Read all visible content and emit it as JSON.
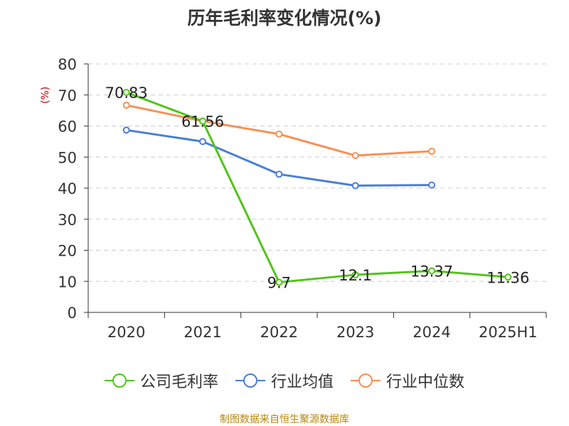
{
  "chart_data": {
    "type": "line",
    "title": "历年毛利率变化情况(%)",
    "ylabel": "(%)",
    "xlabel": "",
    "ylim": [
      0,
      80
    ],
    "yticks": [
      0,
      10,
      20,
      30,
      40,
      50,
      60,
      70,
      80
    ],
    "grid": true,
    "legend_position": "bottom",
    "categories": [
      "2020",
      "2021",
      "2022",
      "2023",
      "2024",
      "2025H1"
    ],
    "series": [
      {
        "name": "公司毛利率",
        "color": "#52c41a",
        "values": [
          70.83,
          61.56,
          9.7,
          12.1,
          13.37,
          11.36
        ],
        "labels": [
          "70.83",
          "61.56",
          "9.7",
          "12.1",
          "13.37",
          "11.36"
        ]
      },
      {
        "name": "行业均值",
        "color": "#4a7fd4",
        "values": [
          58.7,
          55.0,
          44.5,
          40.8,
          41.0,
          null
        ]
      },
      {
        "name": "行业中位数",
        "color": "#f79155",
        "values": [
          66.7,
          61.6,
          57.4,
          50.5,
          51.9,
          null
        ]
      }
    ]
  },
  "source": "制图数据来自恒生聚源数据库"
}
